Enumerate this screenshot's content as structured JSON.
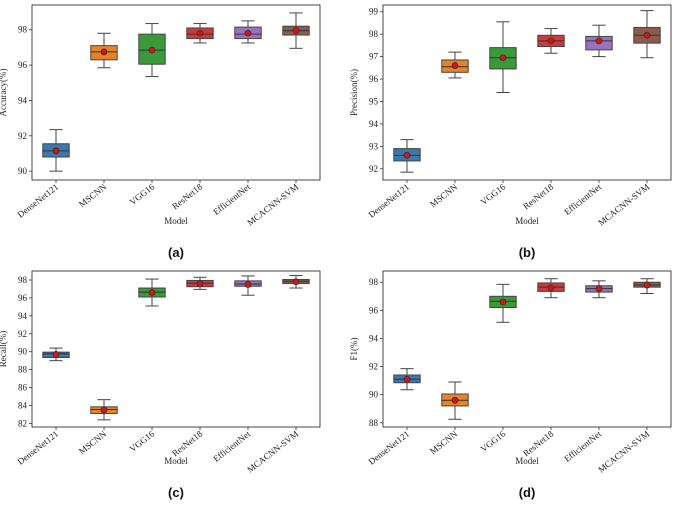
{
  "chart_data": [
    {
      "type": "box",
      "panel_label": "(a)",
      "xlabel": "Model",
      "ylabel": "Accuracy(%)",
      "ylim": [
        89.5,
        99.4
      ],
      "yticks": [
        90,
        92,
        94,
        96,
        98
      ],
      "categories": [
        "DenseNet121",
        "MSCNN",
        "VGG16",
        "ResNet18",
        "EfficientNet",
        "MCACNN-SVM"
      ],
      "colors": [
        "#3a78b0",
        "#e8832a",
        "#3a9a3a",
        "#cc3b3b",
        "#9a72bd",
        "#8c5a4e"
      ],
      "boxes": [
        {
          "min": 90.0,
          "q1": 90.8,
          "median": 91.15,
          "q3": 91.55,
          "max": 92.35,
          "mean": 91.15
        },
        {
          "min": 95.85,
          "q1": 96.3,
          "median": 96.75,
          "q3": 97.1,
          "max": 97.8,
          "mean": 96.75
        },
        {
          "min": 95.35,
          "q1": 96.05,
          "median": 96.85,
          "q3": 97.75,
          "max": 98.35,
          "mean": 96.85
        },
        {
          "min": 97.25,
          "q1": 97.5,
          "median": 97.75,
          "q3": 98.1,
          "max": 98.35,
          "mean": 97.8
        },
        {
          "min": 97.25,
          "q1": 97.5,
          "median": 97.75,
          "q3": 98.15,
          "max": 98.5,
          "mean": 97.8
        },
        {
          "min": 96.95,
          "q1": 97.7,
          "median": 97.95,
          "q3": 98.2,
          "max": 98.95,
          "mean": 97.95
        }
      ]
    },
    {
      "type": "box",
      "panel_label": "(b)",
      "xlabel": "Model",
      "ylabel": "Precision(%)",
      "ylim": [
        91.5,
        99.3
      ],
      "yticks": [
        92,
        93,
        94,
        95,
        96,
        97,
        98,
        99
      ],
      "categories": [
        "DenseNet121",
        "MSCNN",
        "VGG16",
        "ResNet18",
        "EfficientNet",
        "MCACNN-SVM"
      ],
      "colors": [
        "#3a78b0",
        "#e8832a",
        "#3a9a3a",
        "#cc3b3b",
        "#9a72bd",
        "#8c5a4e"
      ],
      "boxes": [
        {
          "min": 91.85,
          "q1": 92.35,
          "median": 92.6,
          "q3": 92.9,
          "max": 93.3,
          "mean": 92.6
        },
        {
          "min": 96.05,
          "q1": 96.3,
          "median": 96.55,
          "q3": 96.85,
          "max": 97.2,
          "mean": 96.6
        },
        {
          "min": 95.4,
          "q1": 96.45,
          "median": 96.95,
          "q3": 97.4,
          "max": 98.55,
          "mean": 96.95
        },
        {
          "min": 97.15,
          "q1": 97.45,
          "median": 97.7,
          "q3": 97.95,
          "max": 98.25,
          "mean": 97.7
        },
        {
          "min": 97.0,
          "q1": 97.3,
          "median": 97.7,
          "q3": 97.9,
          "max": 98.4,
          "mean": 97.7
        },
        {
          "min": 96.95,
          "q1": 97.6,
          "median": 97.95,
          "q3": 98.3,
          "max": 99.05,
          "mean": 97.95
        }
      ]
    },
    {
      "type": "box",
      "panel_label": "(c)",
      "xlabel": "Model",
      "ylabel": "Recall(%)",
      "ylim": [
        81.6,
        99.0
      ],
      "yticks": [
        82,
        84,
        86,
        88,
        90,
        92,
        94,
        96,
        98
      ],
      "categories": [
        "DenseNet121",
        "MSCNN",
        "VGG16",
        "ResNet18",
        "EfficientNet",
        "MCACNN-SVM"
      ],
      "colors": [
        "#3a78b0",
        "#e8832a",
        "#3a9a3a",
        "#cc3b3b",
        "#9a72bd",
        "#8c5a4e"
      ],
      "boxes": [
        {
          "min": 89.0,
          "q1": 89.35,
          "median": 89.75,
          "q3": 89.95,
          "max": 90.4,
          "mean": 89.7
        },
        {
          "min": 82.4,
          "q1": 83.1,
          "median": 83.55,
          "q3": 83.85,
          "max": 84.65,
          "mean": 83.5
        },
        {
          "min": 95.1,
          "q1": 96.1,
          "median": 96.65,
          "q3": 97.1,
          "max": 98.1,
          "mean": 96.6
        },
        {
          "min": 96.95,
          "q1": 97.25,
          "median": 97.65,
          "q3": 97.95,
          "max": 98.3,
          "mean": 97.6
        },
        {
          "min": 96.3,
          "q1": 97.3,
          "median": 97.55,
          "q3": 97.9,
          "max": 98.45,
          "mean": 97.5
        },
        {
          "min": 97.1,
          "q1": 97.6,
          "median": 97.85,
          "q3": 98.05,
          "max": 98.5,
          "mean": 97.8
        }
      ]
    },
    {
      "type": "box",
      "panel_label": "(d)",
      "xlabel": "Model",
      "ylabel": "F1(%)",
      "ylim": [
        87.7,
        98.8
      ],
      "yticks": [
        88,
        90,
        92,
        94,
        96,
        98
      ],
      "categories": [
        "DenseNet121",
        "MSCNN",
        "VGG16",
        "ResNet18",
        "EfficientNet",
        "MCACNN-SVM"
      ],
      "colors": [
        "#3a78b0",
        "#e8832a",
        "#3a9a3a",
        "#cc3b3b",
        "#9a72bd",
        "#8c5a4e"
      ],
      "boxes": [
        {
          "min": 90.35,
          "q1": 90.85,
          "median": 91.1,
          "q3": 91.4,
          "max": 91.85,
          "mean": 91.1
        },
        {
          "min": 88.25,
          "q1": 89.2,
          "median": 89.6,
          "q3": 90.05,
          "max": 90.9,
          "mean": 89.6
        },
        {
          "min": 95.15,
          "q1": 96.2,
          "median": 96.65,
          "q3": 97.0,
          "max": 97.85,
          "mean": 96.6
        },
        {
          "min": 96.9,
          "q1": 97.35,
          "median": 97.65,
          "q3": 97.95,
          "max": 98.25,
          "mean": 97.6
        },
        {
          "min": 96.9,
          "q1": 97.3,
          "median": 97.55,
          "q3": 97.75,
          "max": 98.1,
          "mean": 97.55
        },
        {
          "min": 97.2,
          "q1": 97.65,
          "median": 97.8,
          "q3": 98.0,
          "max": 98.25,
          "mean": 97.8
        }
      ]
    }
  ]
}
